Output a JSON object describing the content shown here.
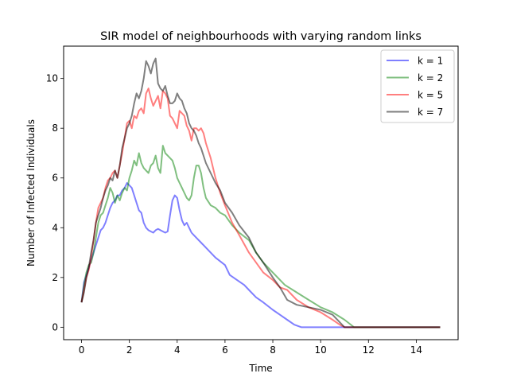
{
  "chart_data": {
    "type": "line",
    "title": "SIR model of neighbourhoods with varying random links",
    "xlabel": "Time",
    "ylabel": "Number of Infected Individuals",
    "xlim": [
      -0.75,
      15.75
    ],
    "ylim": [
      -0.5,
      11.3
    ],
    "xticks": [
      0,
      2,
      4,
      6,
      8,
      10,
      12,
      14
    ],
    "yticks": [
      0,
      2,
      4,
      6,
      8,
      10
    ],
    "grid": false,
    "legend_position": "top-right",
    "series": [
      {
        "name": "k = 1",
        "color": "#0000ff",
        "x": [
          0,
          0.1,
          0.2,
          0.3,
          0.4,
          0.5,
          0.6,
          0.7,
          0.8,
          0.9,
          1.0,
          1.1,
          1.2,
          1.3,
          1.4,
          1.5,
          1.6,
          1.7,
          1.8,
          1.9,
          2.0,
          2.1,
          2.2,
          2.3,
          2.4,
          2.5,
          2.6,
          2.7,
          2.8,
          2.9,
          3.0,
          3.1,
          3.2,
          3.3,
          3.4,
          3.5,
          3.6,
          3.7,
          3.8,
          3.9,
          4.0,
          4.1,
          4.2,
          4.3,
          4.4,
          4.5,
          4.6,
          4.7,
          4.8,
          5.0,
          5.3,
          5.6,
          6.0,
          6.2,
          6.5,
          6.8,
          7.0,
          7.3,
          7.6,
          8.0,
          8.3,
          8.6,
          8.9,
          9.2,
          9.5,
          10.0,
          11.0,
          12.0,
          13.0,
          14.0,
          15.0
        ],
        "y": [
          1.0,
          1.8,
          2.1,
          2.4,
          2.7,
          3.0,
          3.3,
          3.6,
          3.9,
          4.0,
          4.2,
          4.5,
          4.8,
          5.0,
          5.1,
          5.3,
          5.3,
          5.5,
          5.6,
          5.8,
          5.7,
          5.6,
          5.3,
          5.0,
          4.7,
          4.6,
          4.2,
          4.0,
          3.9,
          3.85,
          3.8,
          3.9,
          3.95,
          3.9,
          3.85,
          3.8,
          3.85,
          4.5,
          5.1,
          5.3,
          5.2,
          4.7,
          4.3,
          4.1,
          4.2,
          4.0,
          3.8,
          3.7,
          3.6,
          3.4,
          3.1,
          2.8,
          2.5,
          2.1,
          1.9,
          1.7,
          1.5,
          1.2,
          1.0,
          0.7,
          0.5,
          0.3,
          0.1,
          0.0,
          0.0,
          0.0,
          0.0,
          0.0,
          0.0,
          0.0,
          0.0
        ]
      },
      {
        "name": "k = 2",
        "color": "#008000",
        "x": [
          0,
          0.1,
          0.2,
          0.3,
          0.4,
          0.5,
          0.6,
          0.7,
          0.8,
          0.9,
          1.0,
          1.1,
          1.2,
          1.3,
          1.4,
          1.5,
          1.6,
          1.7,
          1.8,
          1.9,
          2.0,
          2.1,
          2.2,
          2.3,
          2.4,
          2.5,
          2.6,
          2.7,
          2.8,
          2.9,
          3.0,
          3.1,
          3.2,
          3.3,
          3.4,
          3.5,
          3.6,
          3.7,
          3.8,
          3.9,
          4.0,
          4.1,
          4.2,
          4.3,
          4.4,
          4.5,
          4.6,
          4.7,
          4.8,
          4.9,
          5.0,
          5.1,
          5.2,
          5.4,
          5.6,
          5.8,
          6.0,
          6.3,
          6.6,
          7.0,
          7.3,
          7.6,
          8.0,
          8.5,
          9.0,
          9.5,
          10.0,
          10.5,
          11.0,
          11.4,
          12.0,
          13.0,
          14.0,
          15.0
        ],
        "y": [
          1.0,
          1.7,
          2.2,
          2.5,
          2.6,
          3.0,
          3.6,
          4.2,
          4.5,
          4.6,
          4.9,
          5.2,
          5.6,
          5.4,
          5.0,
          5.3,
          5.1,
          5.4,
          5.6,
          5.5,
          6.0,
          6.3,
          6.7,
          6.5,
          7.0,
          6.6,
          6.4,
          6.3,
          6.2,
          6.5,
          6.6,
          6.9,
          6.4,
          6.2,
          7.3,
          7.0,
          6.9,
          6.8,
          6.7,
          6.4,
          6.0,
          5.8,
          5.6,
          5.4,
          5.2,
          5.1,
          5.3,
          6.0,
          6.5,
          6.5,
          6.2,
          5.6,
          5.2,
          4.9,
          4.8,
          4.6,
          4.5,
          4.1,
          3.8,
          3.5,
          3.0,
          2.6,
          2.2,
          1.7,
          1.4,
          1.1,
          0.8,
          0.6,
          0.3,
          0.0,
          0.0,
          0.0,
          0.0,
          0.0
        ]
      },
      {
        "name": "k = 5",
        "color": "#ff0000",
        "x": [
          0,
          0.1,
          0.2,
          0.3,
          0.4,
          0.5,
          0.6,
          0.7,
          0.8,
          0.9,
          1.0,
          1.1,
          1.2,
          1.3,
          1.4,
          1.5,
          1.6,
          1.7,
          1.8,
          1.9,
          2.0,
          2.1,
          2.2,
          2.3,
          2.4,
          2.5,
          2.6,
          2.7,
          2.8,
          2.9,
          3.0,
          3.1,
          3.2,
          3.3,
          3.4,
          3.5,
          3.6,
          3.7,
          3.8,
          3.9,
          4.0,
          4.1,
          4.2,
          4.3,
          4.4,
          4.5,
          4.6,
          4.7,
          4.8,
          4.9,
          5.0,
          5.1,
          5.2,
          5.4,
          5.6,
          5.8,
          6.0,
          6.3,
          6.6,
          7.0,
          7.3,
          7.6,
          8.0,
          8.3,
          8.6,
          9.0,
          9.5,
          10.0,
          10.5,
          10.8,
          11.0,
          12.0,
          13.0,
          14.0,
          15.0
        ],
        "y": [
          1.0,
          1.5,
          2.0,
          2.3,
          2.8,
          3.5,
          4.2,
          4.8,
          5.0,
          5.2,
          5.6,
          5.9,
          6.0,
          6.2,
          6.3,
          6.0,
          6.5,
          7.0,
          7.6,
          8.2,
          8.3,
          8.0,
          8.5,
          8.4,
          8.7,
          8.8,
          8.6,
          9.4,
          9.6,
          9.2,
          8.9,
          9.1,
          9.3,
          8.8,
          9.5,
          9.4,
          9.2,
          8.5,
          8.4,
          8.2,
          8.0,
          8.7,
          8.6,
          8.5,
          8.1,
          7.9,
          7.5,
          8.0,
          8.0,
          7.9,
          8.0,
          7.8,
          7.4,
          6.8,
          6.0,
          5.4,
          4.9,
          4.2,
          3.7,
          3.0,
          2.6,
          2.2,
          1.9,
          1.6,
          1.5,
          1.1,
          0.8,
          0.6,
          0.3,
          0.1,
          0.0,
          0.0,
          0.0,
          0.0,
          0.0
        ]
      },
      {
        "name": "k = 7",
        "color": "#000000",
        "x": [
          0,
          0.1,
          0.2,
          0.3,
          0.4,
          0.5,
          0.6,
          0.7,
          0.8,
          0.9,
          1.0,
          1.1,
          1.2,
          1.3,
          1.4,
          1.5,
          1.6,
          1.7,
          1.8,
          1.9,
          2.0,
          2.1,
          2.2,
          2.3,
          2.4,
          2.5,
          2.6,
          2.7,
          2.8,
          2.9,
          3.0,
          3.1,
          3.2,
          3.3,
          3.4,
          3.5,
          3.6,
          3.7,
          3.8,
          3.9,
          4.0,
          4.1,
          4.2,
          4.3,
          4.4,
          4.5,
          4.6,
          4.7,
          4.8,
          4.9,
          5.0,
          5.2,
          5.4,
          5.6,
          5.8,
          6.0,
          6.3,
          6.6,
          7.0,
          7.3,
          7.6,
          8.0,
          8.3,
          8.6,
          9.0,
          9.5,
          10.0,
          10.5,
          11.0,
          12.0,
          13.0,
          14.0,
          15.0
        ],
        "y": [
          1.0,
          1.4,
          2.0,
          2.4,
          3.0,
          3.5,
          4.2,
          4.5,
          4.8,
          5.2,
          5.5,
          5.7,
          6.0,
          5.9,
          6.3,
          6.0,
          6.5,
          7.2,
          7.6,
          8.0,
          8.2,
          8.5,
          9.0,
          9.4,
          9.2,
          9.5,
          10.0,
          10.7,
          10.5,
          10.2,
          10.6,
          10.8,
          9.8,
          9.6,
          9.5,
          9.7,
          9.3,
          9.0,
          9.0,
          9.1,
          9.4,
          9.2,
          9.1,
          8.8,
          8.6,
          8.2,
          8.0,
          7.9,
          7.7,
          7.4,
          7.2,
          6.6,
          6.2,
          5.8,
          5.5,
          5.0,
          4.6,
          4.1,
          3.6,
          3.0,
          2.6,
          2.0,
          1.6,
          1.1,
          0.9,
          0.8,
          0.7,
          0.5,
          0.0,
          0.0,
          0.0,
          0.0,
          0.0
        ]
      }
    ]
  }
}
